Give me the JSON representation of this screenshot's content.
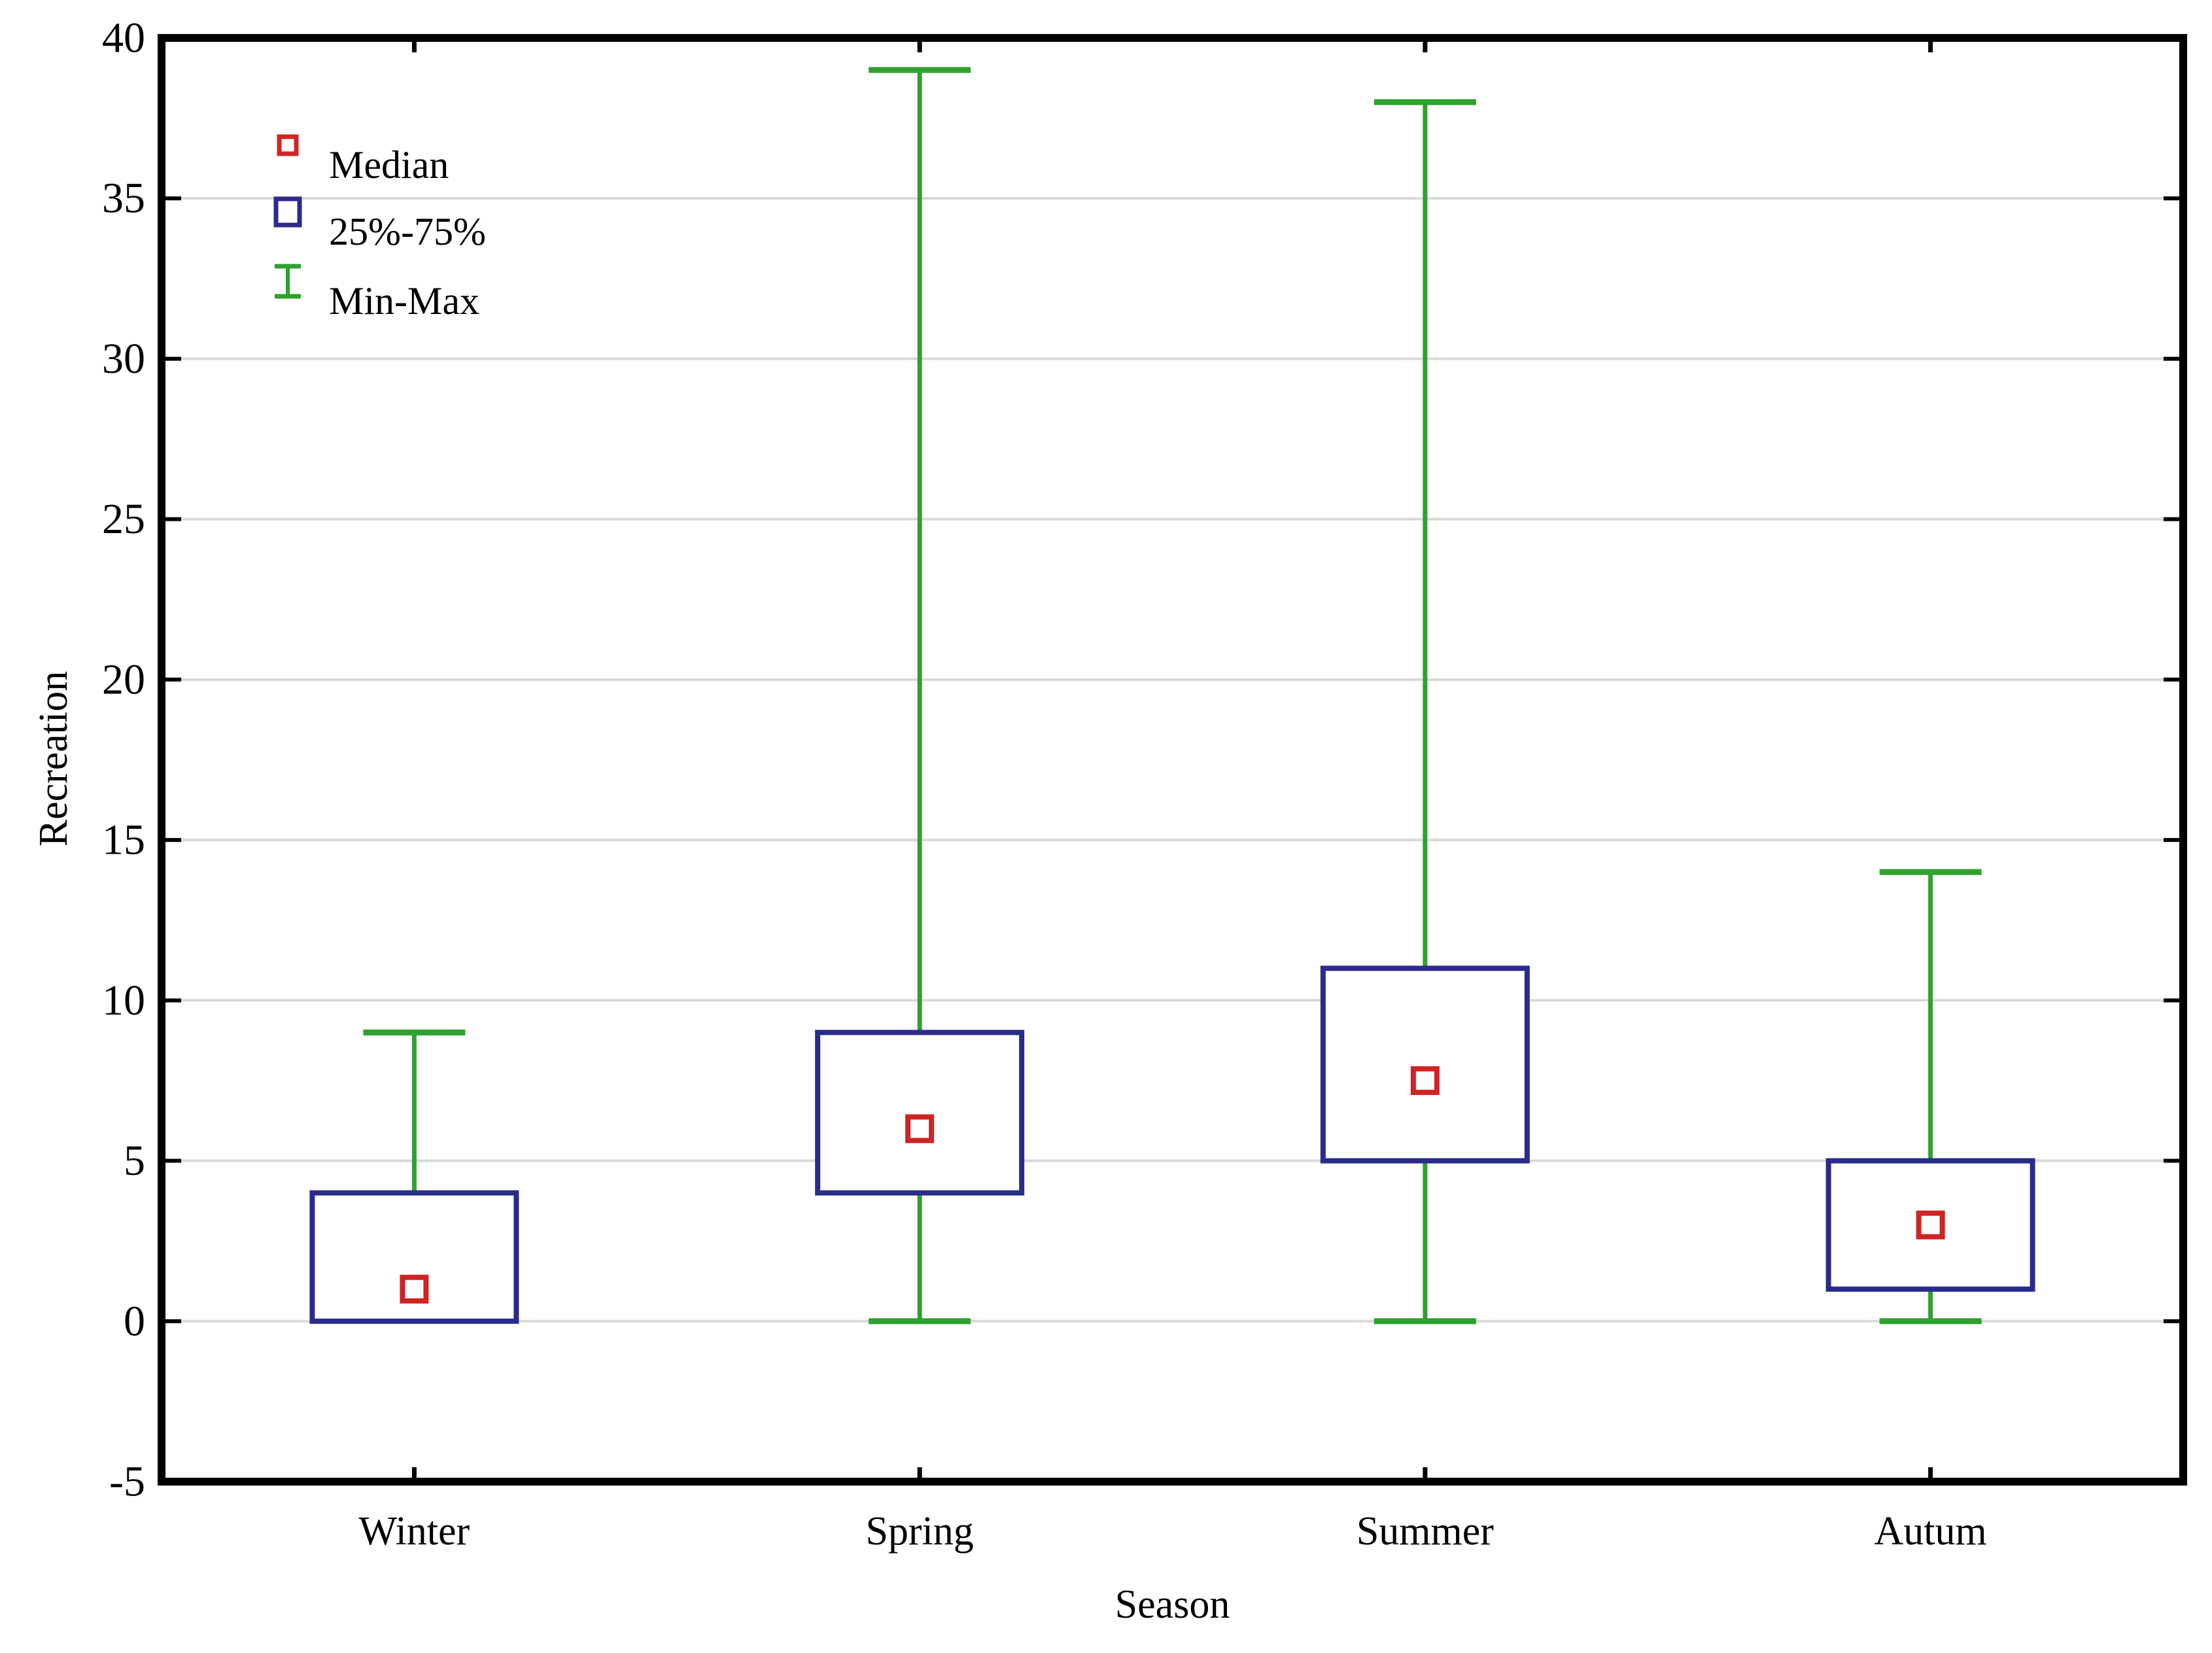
{
  "chart_data": {
    "type": "box",
    "title": "",
    "xlabel": "Season",
    "ylabel": "Recreation",
    "ylim": [
      -5,
      40
    ],
    "yticks": [
      -5,
      0,
      5,
      10,
      15,
      20,
      25,
      30,
      35,
      40
    ],
    "ytick_labels": [
      "-5",
      "0",
      "5",
      "10",
      "15",
      "20",
      "25",
      "30",
      "35",
      "40"
    ],
    "gridlines_at": [
      0,
      5,
      10,
      15,
      20,
      25,
      30,
      35
    ],
    "grid": "horizontal-only",
    "categories": [
      "Winter",
      "Spring",
      "Summer",
      "Autum"
    ],
    "series": [
      {
        "category": "Winter",
        "min": 0,
        "q1": 0,
        "median": 1,
        "q3": 4,
        "max": 9
      },
      {
        "category": "Spring",
        "min": 0,
        "q1": 4,
        "median": 6,
        "q3": 9,
        "max": 39
      },
      {
        "category": "Summer",
        "min": 0,
        "q1": 5,
        "median": 7.5,
        "q3": 11,
        "max": 38
      },
      {
        "category": "Autum",
        "min": 0,
        "q1": 1,
        "median": 3,
        "q3": 5,
        "max": 14
      }
    ],
    "legend_position": "top-left-inside",
    "legend": [
      {
        "label": "Median",
        "marker": "median-square-icon"
      },
      {
        "label": "25%-75%",
        "marker": "box-icon"
      },
      {
        "label": "Min-Max",
        "marker": "whisker-icon"
      }
    ],
    "colors": {
      "box_border": "#2b2b8c",
      "box_fill": "#ffffff",
      "median_marker": "#cf2424",
      "whisker": "#2fa12f",
      "gridline": "#d9d9d9",
      "axis_border": "#000000",
      "text": "#000000",
      "background": "#ffffff"
    }
  }
}
